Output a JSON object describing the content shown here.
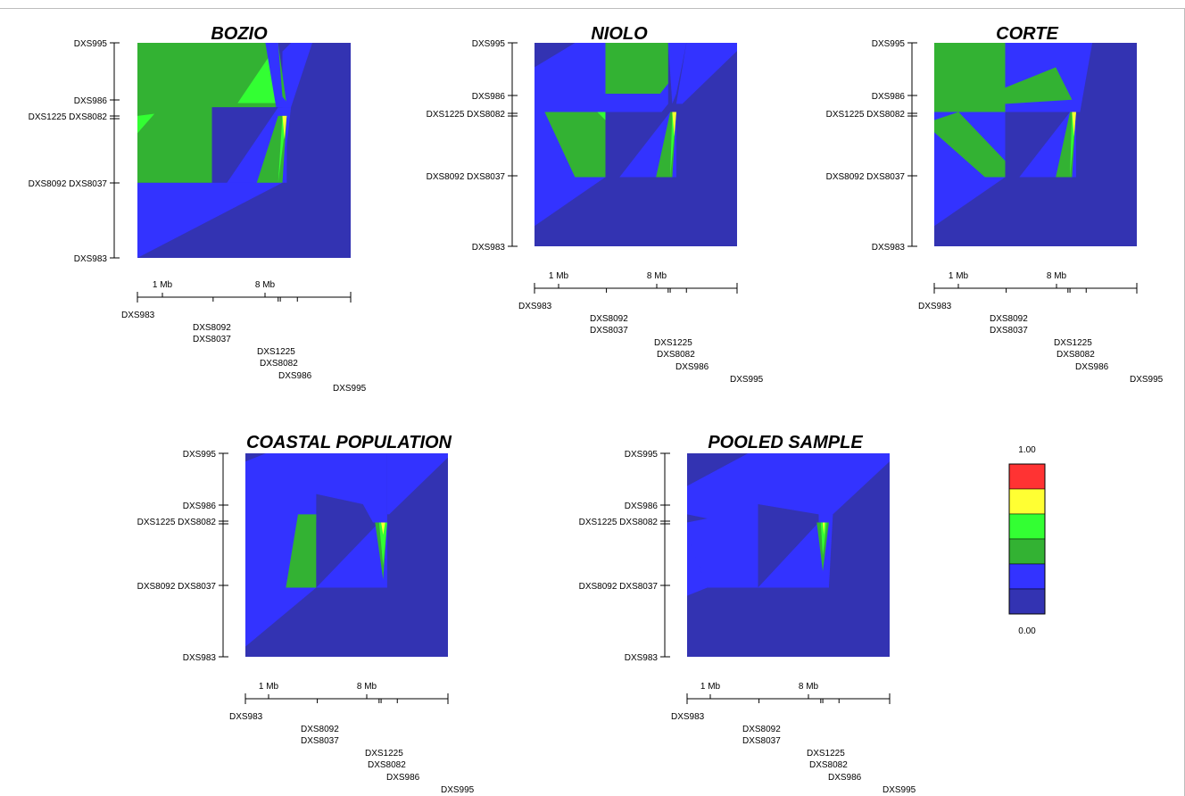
{
  "figure": {
    "scale_labels": {
      "one_mb": "1 Mb",
      "eight_mb": "8 Mb"
    },
    "marker_pairs": {
      "mid": "DXS8092 DXS8037",
      "near": "DXS1225 DXS8082"
    }
  },
  "colors": {
    "dark_blue": "#3333B2",
    "blue": "#3333FF",
    "dark_green": "#33B233",
    "green": "#33FF33",
    "yellow": "#FFFF33",
    "red": "#FF3333"
  },
  "chart_data": [
    {
      "type": "heatmap",
      "title": "BOZIO",
      "markers": [
        "DXS983",
        "DXS8092",
        "DXS8037",
        "DXS1225",
        "DXS8082",
        "DXS986",
        "DXS995"
      ]
    },
    {
      "type": "heatmap",
      "title": "NIOLO",
      "markers": [
        "DXS983",
        "DXS8092",
        "DXS8037",
        "DXS1225",
        "DXS8082",
        "DXS986",
        "DXS995"
      ]
    },
    {
      "type": "heatmap",
      "title": "CORTE",
      "markers": [
        "DXS983",
        "DXS8092",
        "DXS8037",
        "DXS1225",
        "DXS8082",
        "DXS986",
        "DXS995"
      ]
    },
    {
      "type": "heatmap",
      "title": "COASTAL POPULATION",
      "markers": [
        "DXS983",
        "DXS8092",
        "DXS8037",
        "DXS1225",
        "DXS8082",
        "DXS986",
        "DXS995"
      ]
    },
    {
      "type": "heatmap",
      "title": "POOLED SAMPLE",
      "markers": [
        "DXS983",
        "DXS8092",
        "DXS8037",
        "DXS1225",
        "DXS8082",
        "DXS986",
        "DXS995"
      ]
    }
  ],
  "legend": {
    "max_label": "1.00",
    "min_label": "0.00",
    "bins": [
      "#FF3333",
      "#FFFF33",
      "#33FF33",
      "#33B233",
      "#3333FF",
      "#3333B2"
    ]
  }
}
